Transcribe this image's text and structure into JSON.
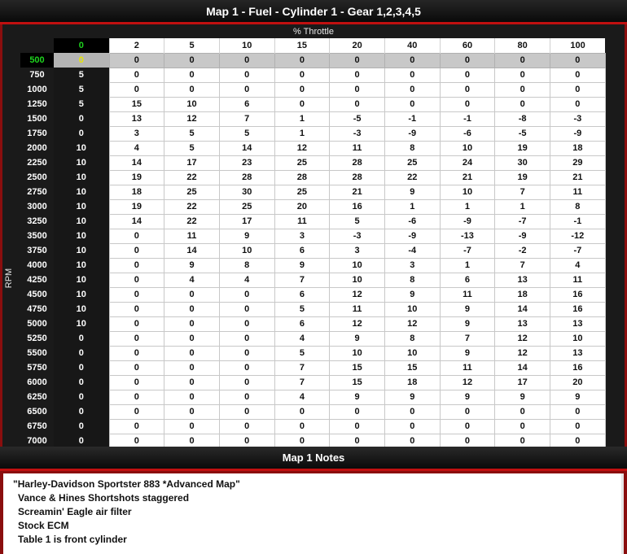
{
  "window": {
    "title": "Map 1 - Fuel - Cylinder 1 - Gear 1,2,3,4,5"
  },
  "map": {
    "x_axis_label": "% Throttle",
    "y_axis_label": "RPM",
    "throttle_columns": [
      "0",
      "2",
      "5",
      "10",
      "15",
      "20",
      "40",
      "60",
      "80",
      "100"
    ],
    "selected_rpm": "500",
    "rows": [
      {
        "rpm": "500",
        "values": [
          "0",
          "0",
          "0",
          "0",
          "0",
          "0",
          "0",
          "0",
          "0",
          "0"
        ]
      },
      {
        "rpm": "750",
        "values": [
          "5",
          "0",
          "0",
          "0",
          "0",
          "0",
          "0",
          "0",
          "0",
          "0"
        ]
      },
      {
        "rpm": "1000",
        "values": [
          "5",
          "0",
          "0",
          "0",
          "0",
          "0",
          "0",
          "0",
          "0",
          "0"
        ]
      },
      {
        "rpm": "1250",
        "values": [
          "5",
          "15",
          "10",
          "6",
          "0",
          "0",
          "0",
          "0",
          "0",
          "0"
        ]
      },
      {
        "rpm": "1500",
        "values": [
          "0",
          "13",
          "12",
          "7",
          "1",
          "-5",
          "-1",
          "-1",
          "-8",
          "-3"
        ]
      },
      {
        "rpm": "1750",
        "values": [
          "0",
          "3",
          "5",
          "5",
          "1",
          "-3",
          "-9",
          "-6",
          "-5",
          "-9"
        ]
      },
      {
        "rpm": "2000",
        "values": [
          "10",
          "4",
          "5",
          "14",
          "12",
          "11",
          "8",
          "10",
          "19",
          "18"
        ]
      },
      {
        "rpm": "2250",
        "values": [
          "10",
          "14",
          "17",
          "23",
          "25",
          "28",
          "25",
          "24",
          "30",
          "29"
        ]
      },
      {
        "rpm": "2500",
        "values": [
          "10",
          "19",
          "22",
          "28",
          "28",
          "28",
          "22",
          "21",
          "19",
          "21"
        ]
      },
      {
        "rpm": "2750",
        "values": [
          "10",
          "18",
          "25",
          "30",
          "25",
          "21",
          "9",
          "10",
          "7",
          "11"
        ]
      },
      {
        "rpm": "3000",
        "values": [
          "10",
          "19",
          "22",
          "25",
          "20",
          "16",
          "1",
          "1",
          "1",
          "8"
        ]
      },
      {
        "rpm": "3250",
        "values": [
          "10",
          "14",
          "22",
          "17",
          "11",
          "5",
          "-6",
          "-9",
          "-7",
          "-1"
        ]
      },
      {
        "rpm": "3500",
        "values": [
          "10",
          "0",
          "11",
          "9",
          "3",
          "-3",
          "-9",
          "-13",
          "-9",
          "-12"
        ]
      },
      {
        "rpm": "3750",
        "values": [
          "10",
          "0",
          "14",
          "10",
          "6",
          "3",
          "-4",
          "-7",
          "-2",
          "-7"
        ]
      },
      {
        "rpm": "4000",
        "values": [
          "10",
          "0",
          "9",
          "8",
          "9",
          "10",
          "3",
          "1",
          "7",
          "4"
        ]
      },
      {
        "rpm": "4250",
        "values": [
          "10",
          "0",
          "4",
          "4",
          "7",
          "10",
          "8",
          "6",
          "13",
          "11"
        ]
      },
      {
        "rpm": "4500",
        "values": [
          "10",
          "0",
          "0",
          "0",
          "6",
          "12",
          "9",
          "11",
          "18",
          "16"
        ]
      },
      {
        "rpm": "4750",
        "values": [
          "10",
          "0",
          "0",
          "0",
          "5",
          "11",
          "10",
          "9",
          "14",
          "16"
        ]
      },
      {
        "rpm": "5000",
        "values": [
          "10",
          "0",
          "0",
          "0",
          "6",
          "12",
          "12",
          "9",
          "13",
          "13"
        ]
      },
      {
        "rpm": "5250",
        "values": [
          "0",
          "0",
          "0",
          "0",
          "4",
          "9",
          "8",
          "7",
          "12",
          "10"
        ]
      },
      {
        "rpm": "5500",
        "values": [
          "0",
          "0",
          "0",
          "0",
          "5",
          "10",
          "10",
          "9",
          "12",
          "13"
        ]
      },
      {
        "rpm": "5750",
        "values": [
          "0",
          "0",
          "0",
          "0",
          "7",
          "15",
          "15",
          "11",
          "14",
          "16"
        ]
      },
      {
        "rpm": "6000",
        "values": [
          "0",
          "0",
          "0",
          "0",
          "7",
          "15",
          "18",
          "12",
          "17",
          "20"
        ]
      },
      {
        "rpm": "6250",
        "values": [
          "0",
          "0",
          "0",
          "0",
          "4",
          "9",
          "9",
          "9",
          "9",
          "9"
        ]
      },
      {
        "rpm": "6500",
        "values": [
          "0",
          "0",
          "0",
          "0",
          "0",
          "0",
          "0",
          "0",
          "0",
          "0"
        ]
      },
      {
        "rpm": "6750",
        "values": [
          "0",
          "0",
          "0",
          "0",
          "0",
          "0",
          "0",
          "0",
          "0",
          "0"
        ]
      },
      {
        "rpm": "7000",
        "values": [
          "0",
          "0",
          "0",
          "0",
          "0",
          "0",
          "0",
          "0",
          "0",
          "0"
        ]
      }
    ]
  },
  "notes": {
    "title": "Map 1 Notes",
    "lines": [
      "\"Harley-Davidson Sportster 883 *Advanced Map\"",
      "Vance & Hines Shortshots staggered",
      "Screamin' Eagle air filter",
      "Stock ECM",
      "Table 1 is front cylinder"
    ]
  },
  "colors": {
    "accent_red": "#c01010",
    "header_green": "#1ed41e",
    "selected_yellow": "#e6e600"
  }
}
